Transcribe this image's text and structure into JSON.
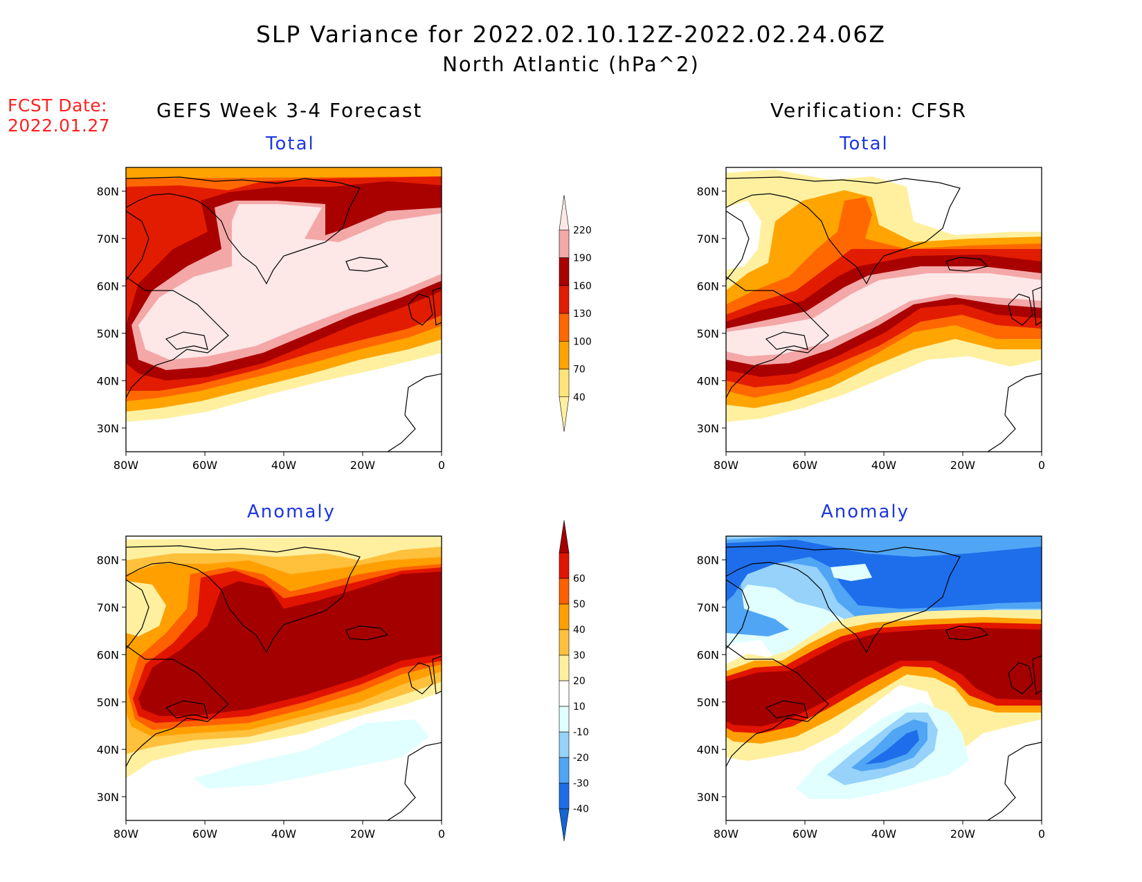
{
  "title": {
    "line1": "SLP Variance for 2022.02.10.12Z-2022.02.24.06Z",
    "line2": "North Atlantic (hPa^2)"
  },
  "fcst": {
    "label": "FCST Date:",
    "date": "2022.01.27"
  },
  "columns": {
    "left": "GEFS Week 3-4 Forecast",
    "right": "Verification: CFSR"
  },
  "panel_titles": {
    "total": "Total",
    "anomaly": "Anomaly"
  },
  "map": {
    "lon_range": [
      -80,
      0
    ],
    "lat_range": [
      25,
      85
    ],
    "lon_ticks": [
      {
        "v": -80,
        "label": "80W"
      },
      {
        "v": -60,
        "label": "60W"
      },
      {
        "v": -40,
        "label": "40W"
      },
      {
        "v": -20,
        "label": "20W"
      },
      {
        "v": 0,
        "label": "0"
      }
    ],
    "lat_ticks": [
      {
        "v": 30,
        "label": "30N"
      },
      {
        "v": 40,
        "label": "40N"
      },
      {
        "v": 50,
        "label": "50N"
      },
      {
        "v": 60,
        "label": "60N"
      },
      {
        "v": 70,
        "label": "70N"
      },
      {
        "v": 80,
        "label": "80N"
      }
    ]
  },
  "colorbars": {
    "total": {
      "levels": [
        "40",
        "70",
        "100",
        "130",
        "160",
        "190",
        "220"
      ],
      "colors": [
        "#fff0a0",
        "#ffe479",
        "#ffa400",
        "#ff6800",
        "#e21c00",
        "#a90000",
        "#f4a7a7",
        "#fde7e7"
      ]
    },
    "anomaly": {
      "levels": [
        "-40",
        "-30",
        "-20",
        "-10",
        "10",
        "20",
        "30",
        "40",
        "50",
        "60"
      ],
      "colors": [
        "#1464d2",
        "#1e6eeb",
        "#50a5f5",
        "#96d2fa",
        "#e1ffff",
        "#ffffff",
        "#fff0a0",
        "#ffc03c",
        "#ffa000",
        "#ff6000",
        "#e11400",
        "#a50000"
      ]
    }
  },
  "chart_data": [
    {
      "type": "heatmap",
      "title": "Total",
      "panel": "GEFS Week 3-4 Forecast",
      "units": "hPa^2",
      "xlabel": "",
      "ylabel": "",
      "xlim": [
        -80,
        0
      ],
      "ylim": [
        25,
        85
      ],
      "levels": [
        40,
        70,
        100,
        130,
        160,
        190,
        220
      ],
      "note_peak": ">220 over central North Atlantic 40-75N"
    },
    {
      "type": "heatmap",
      "title": "Total",
      "panel": "Verification: CFSR",
      "units": "hPa^2",
      "xlim": [
        -80,
        0
      ],
      "ylim": [
        25,
        85
      ],
      "levels": [
        40,
        70,
        100,
        130,
        160,
        190,
        220
      ]
    },
    {
      "type": "heatmap",
      "title": "Anomaly",
      "panel": "GEFS Week 3-4 Forecast",
      "units": "hPa^2",
      "xlim": [
        -80,
        0
      ],
      "ylim": [
        25,
        85
      ],
      "levels": [
        -40,
        -30,
        -20,
        -10,
        10,
        20,
        30,
        40,
        50,
        60
      ]
    },
    {
      "type": "heatmap",
      "title": "Anomaly",
      "panel": "Verification: CFSR",
      "units": "hPa^2",
      "xlim": [
        -80,
        0
      ],
      "ylim": [
        25,
        85
      ],
      "levels": [
        -40,
        -30,
        -20,
        -10,
        10,
        20,
        30,
        40,
        50,
        60
      ]
    }
  ]
}
